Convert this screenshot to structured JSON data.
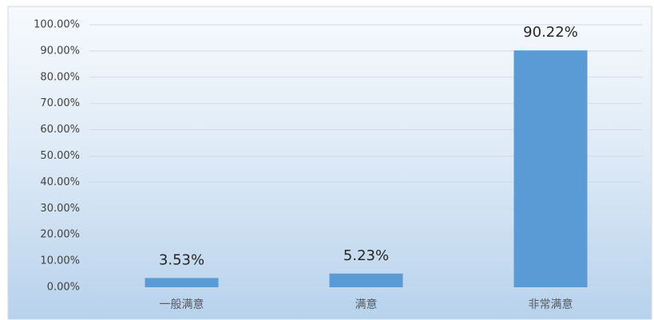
{
  "chart_data": {
    "type": "bar",
    "categories": [
      "一般满意",
      "满意",
      "非常满意"
    ],
    "values": [
      3.53,
      5.23,
      90.22
    ],
    "value_labels": [
      "3.53%",
      "5.23%",
      "90.22%"
    ],
    "color": "#5b9bd5",
    "ylim": [
      0,
      100
    ],
    "yticks": [
      {
        "value": 0,
        "label": "0.00%"
      },
      {
        "value": 10,
        "label": "10.00%"
      },
      {
        "value": 20,
        "label": "20.00%"
      },
      {
        "value": 30,
        "label": "30.00%"
      },
      {
        "value": 40,
        "label": "40.00%"
      },
      {
        "value": 50,
        "label": "50.00%"
      },
      {
        "value": 60,
        "label": "60.00%"
      },
      {
        "value": 70,
        "label": "70.00%"
      },
      {
        "value": 80,
        "label": "80.00%"
      },
      {
        "value": 90,
        "label": "90.00%"
      },
      {
        "value": 100,
        "label": "100.00%"
      }
    ],
    "grid": true
  }
}
